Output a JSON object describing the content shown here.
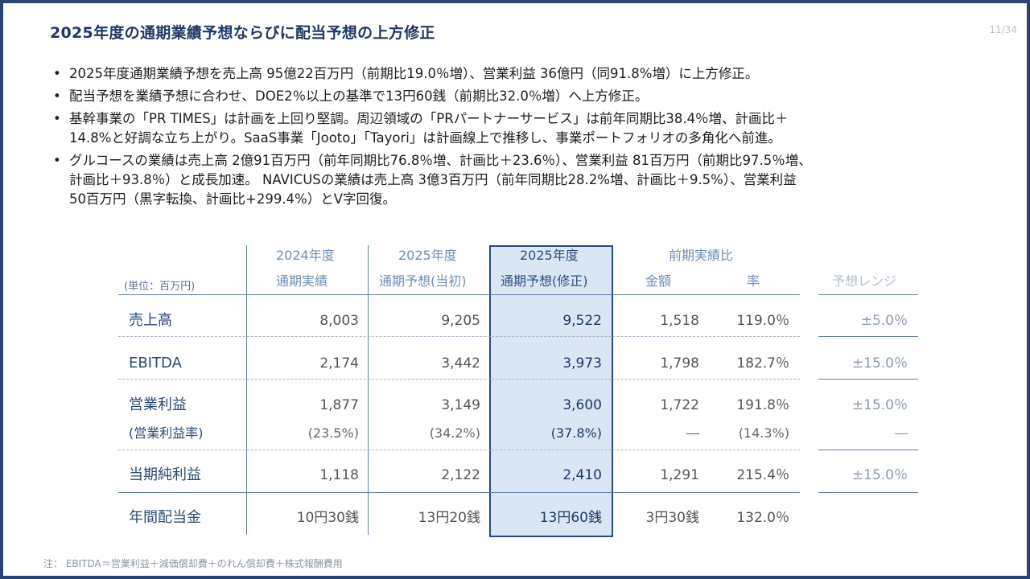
{
  "header": {
    "title": "2025年度の通期業績予想ならびに配当予想の上方修正",
    "page_number": "11/34"
  },
  "bullets": [
    {
      "lines": [
        "2025年度通期業績予想を売上高 95億22百万円（前期比19.0％増）、営業利益 36億円（同91.8%増）に上方修正。"
      ]
    },
    {
      "lines": [
        "配当予想を業績予想に合わせ、DOE2％以上の基準で13円60銭（前期比32.0％増）へ上方修正。"
      ]
    },
    {
      "lines": [
        "基幹事業の「PR TIMES」は計画を上回り堅調。周辺領域の「PRパートナーサービス」は前年同期比38.4％増、計画比＋",
        "14.8%と好調な立ち上がり。SaaS事業「Jooto」「Tayori」は計画線上で推移し、事業ポートフォリオの多角化へ前進。"
      ]
    },
    {
      "lines": [
        "グルコースの業績は売上高 2億91百万円（前年同期比76.8％増、計画比＋23.6％）、営業利益 81百万円（前期比97.5％増、",
        "計画比＋93.8％）と成長加速。 NAVICUSの業績は売上高 3億3百万円（前年同期比28.2%増、計画比＋9.5%）、営業利益",
        "50百万円（黒字転換、計画比+299.4%）とV字回復。"
      ]
    }
  ],
  "table": {
    "unit_label": "(単位：百万円)",
    "headers": {
      "fy2024_line1": "2024年度",
      "fy2024_line2": "通期実績",
      "fy2025_initial_line1": "2025年度",
      "fy2025_initial_line2": "通期予想(当初)",
      "fy2025_revised_line1": "2025年度",
      "fy2025_revised_line2": "通期予想(修正)",
      "yoy_group": "前期実績比",
      "yoy_amount": "金額",
      "yoy_rate": "率",
      "range": "予想レンジ"
    },
    "rows": {
      "sales": {
        "label": "売上高",
        "fy2024": "8,003",
        "initial": "9,205",
        "revised": "9,522",
        "amount": "1,518",
        "rate": "119.0％",
        "range": "±5.0％"
      },
      "ebitda": {
        "label": "EBITDA",
        "fy2024": "2,174",
        "initial": "3,442",
        "revised": "3,973",
        "amount": "1,798",
        "rate": "182.7％",
        "range": "±15.0％"
      },
      "op": {
        "label": "営業利益",
        "fy2024": "1,877",
        "initial": "3,149",
        "revised": "3,600",
        "amount": "1,722",
        "rate": "191.8％",
        "range": "±15.0％"
      },
      "op_margin": {
        "label": "(営業利益率)",
        "fy2024": "(23.5%)",
        "initial": "(34.2%)",
        "revised": "(37.8%)",
        "amount": "―",
        "rate": "(14.3%)",
        "range": "―"
      },
      "net": {
        "label": "当期純利益",
        "fy2024": "1,118",
        "initial": "2,122",
        "revised": "2,410",
        "amount": "1,291",
        "rate": "215.4％",
        "range": "±15.0％"
      },
      "dividend": {
        "label": "年間配当金",
        "fy2024": "10円30銭",
        "initial": "13円20銭",
        "revised": "13円60銭",
        "amount": "3円30銭",
        "rate": "132.0％"
      }
    }
  },
  "footnote": "注： EBITDA＝営業利益＋減価償却費＋のれん償却費＋株式報酬費用",
  "colors": {
    "frame": "#2a4370",
    "title": "#1f3864",
    "highlight_fill": "#dae6f4",
    "highlight_border": "#274a7d"
  }
}
